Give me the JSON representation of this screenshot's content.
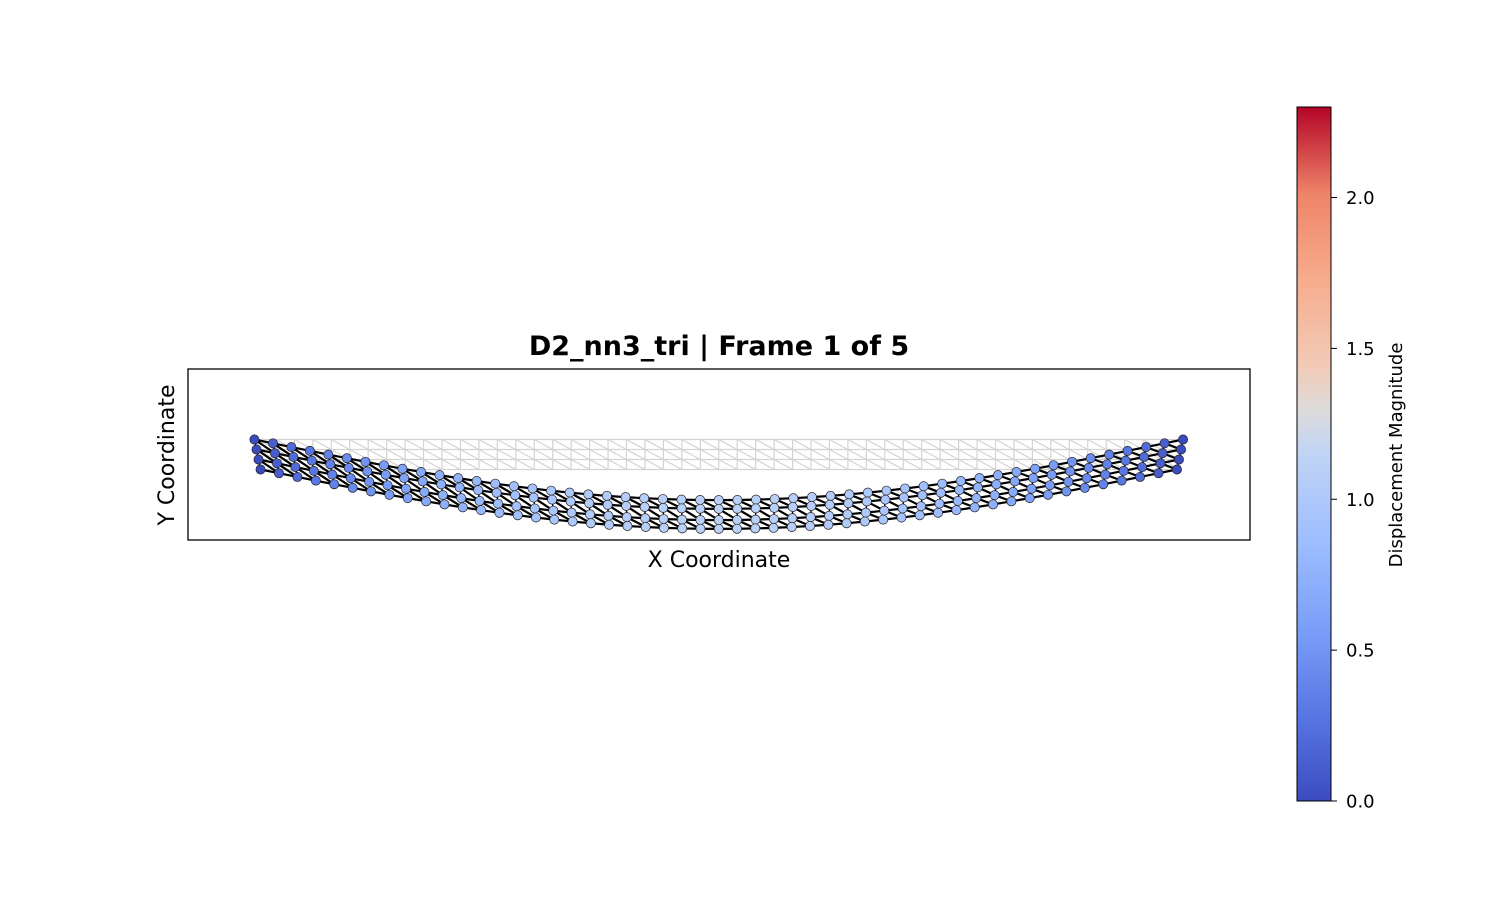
{
  "chart_data": {
    "type": "scatter",
    "title": "D2_nn3_tri  |  Frame 1 of 5",
    "xlabel": "X Coordinate",
    "ylabel": "Y Coordinate",
    "grid": false,
    "colormap": "coolwarm",
    "colorbar": {
      "label": "Displacement Magnitude",
      "range": [
        0.0,
        2.3
      ],
      "ticks": [
        0.0,
        0.5,
        1.0,
        1.5,
        2.0
      ],
      "tick_labels": [
        "0.0",
        "0.5",
        "1.0",
        "1.5",
        "2.0"
      ],
      "placement": "right"
    },
    "lattice": {
      "columns": 51,
      "rows": 4,
      "max_sag": 3.1,
      "max_displacement": 1.1,
      "reference_mesh_color": "#d3d3d3",
      "deformed_edge_color": "#000000"
    }
  }
}
